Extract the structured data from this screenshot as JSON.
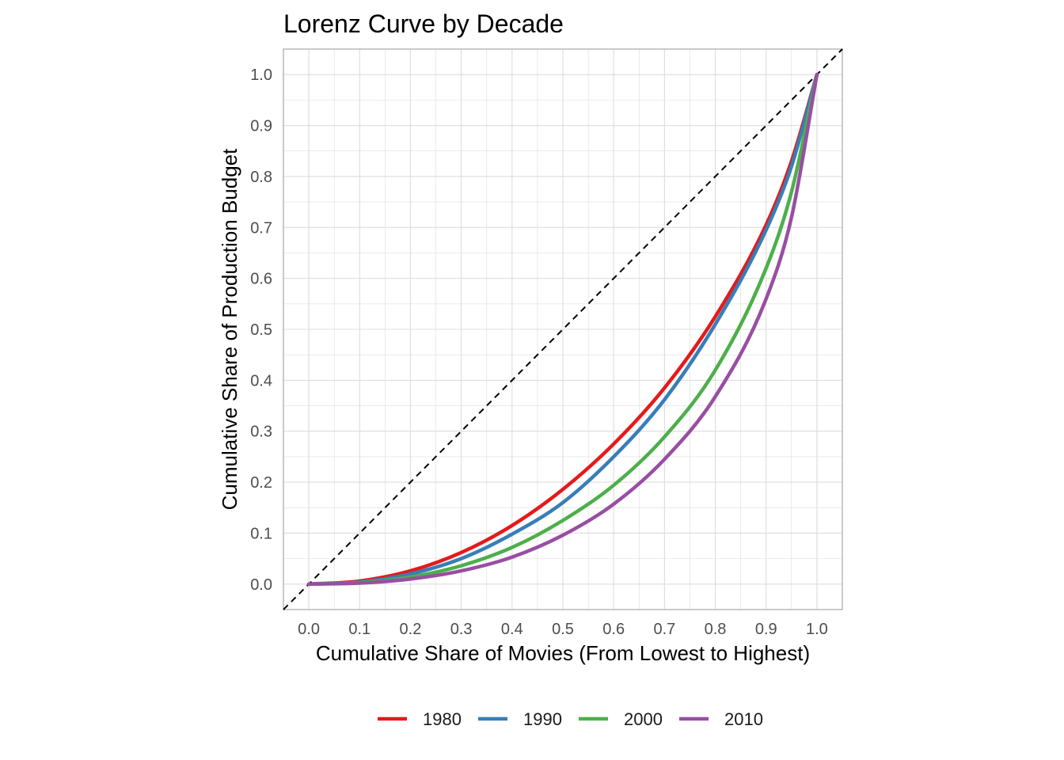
{
  "chart_data": {
    "type": "line",
    "title": "Lorenz Curve by Decade",
    "xlabel": "Cumulative Share of Movies (From Lowest to Highest)",
    "ylabel": "Cumulative Share of Production Budget",
    "xlim": [
      -0.05,
      1.05
    ],
    "ylim": [
      -0.05,
      1.05
    ],
    "x_ticks": [
      "0.0",
      "0.1",
      "0.2",
      "0.3",
      "0.4",
      "0.5",
      "0.6",
      "0.7",
      "0.8",
      "0.9",
      "1.0"
    ],
    "y_ticks": [
      "0.0",
      "0.1",
      "0.2",
      "0.3",
      "0.4",
      "0.5",
      "0.6",
      "0.7",
      "0.8",
      "0.9",
      "1.0"
    ],
    "grid": true,
    "legend_position": "bottom",
    "reference_line": {
      "style": "dashed",
      "color": "#000000",
      "x": [
        -0.05,
        1.05
      ],
      "y": [
        -0.05,
        1.05
      ]
    },
    "x": [
      0.0,
      0.1,
      0.2,
      0.3,
      0.4,
      0.5,
      0.6,
      0.7,
      0.8,
      0.9,
      0.95,
      1.0
    ],
    "series": [
      {
        "name": "1980",
        "color": "#E41A1C",
        "y": [
          0.0,
          0.006,
          0.026,
          0.062,
          0.115,
          0.186,
          0.275,
          0.385,
          0.525,
          0.705,
          0.83,
          1.0
        ]
      },
      {
        "name": "1990",
        "color": "#377EB8",
        "y": [
          0.0,
          0.004,
          0.02,
          0.05,
          0.098,
          0.16,
          0.25,
          0.362,
          0.51,
          0.695,
          0.82,
          1.0
        ]
      },
      {
        "name": "2000",
        "color": "#4DAF4A",
        "y": [
          0.0,
          0.003,
          0.014,
          0.036,
          0.072,
          0.125,
          0.194,
          0.289,
          0.42,
          0.62,
          0.77,
          1.0
        ]
      },
      {
        "name": "2010",
        "color": "#984EA3",
        "y": [
          0.0,
          0.002,
          0.01,
          0.026,
          0.053,
          0.096,
          0.157,
          0.245,
          0.368,
          0.56,
          0.72,
          1.0
        ]
      }
    ]
  }
}
